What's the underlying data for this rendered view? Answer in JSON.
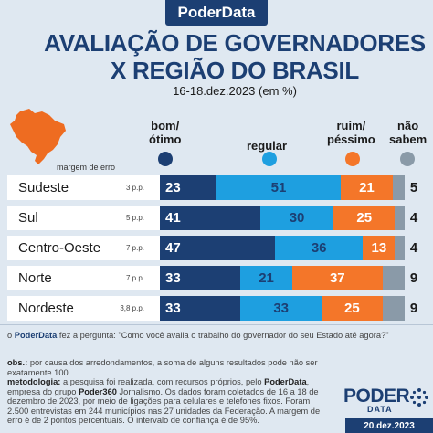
{
  "brand": "PoderData",
  "date_tab": "20.dez.2023",
  "logo": {
    "main": "PODER",
    "sub": "DATA"
  },
  "colors": {
    "bom_otimo": "#1c3f73",
    "regular": "#1e9fe0",
    "ruim_pessimo": "#f47629",
    "nao_sabem": "#8a9aa8",
    "brazil_map": "#ee6c21"
  },
  "legend": {
    "bom_otimo": "bom/\nótimo",
    "regular": "regular",
    "ruim_pessimo": "ruim/\npéssimo",
    "nao_sabem": "não\nsabem",
    "margem": "margem de erro"
  },
  "pergunta_prefix": "o",
  "pergunta_brand": "PoderData",
  "pergunta_text": "fez a pergunta: \"Como você avalia o trabalho do governador do seu Estado até agora?\"",
  "obs_label": "obs.:",
  "obs_text": "por causa dos arredondamentos, a soma de alguns resultados pode não ser exatamente 100.",
  "metodologia_label": "metodologia:",
  "metodologia_text_1": "a pesquisa foi realizada, com recursos próprios, pelo",
  "metodologia_brand_1": "PoderData",
  "metodologia_text_2": ", empresa do grupo",
  "metodologia_brand_2": "Poder360",
  "metodologia_text_3": "Jornalismo. Os dados foram coletados de 16 a 18 de dezembro de 2023, por meio de ligações para celulares e telefones fixos. Foram 2.500 entrevistas em 244 municípios nas 27 unidades da Federação. A margem de erro é de 2 pontos percentuais. O intervalo de confiança é de 95%.",
  "chart_data": {
    "type": "bar",
    "stacked": true,
    "orientation": "horizontal",
    "title": "AVALIAÇÃO DE GOVERNADORES",
    "title_line2": "X REGIÃO DO BRASIL",
    "subtitle": "16-18.dez.2023 (em %)",
    "categories": [
      "Sudeste",
      "Sul",
      "Centro-Oeste",
      "Norte",
      "Nordeste"
    ],
    "margins": [
      "3 p.p.",
      "5 p.p.",
      "7 p.p.",
      "7 p.p.",
      "3,8 p.p."
    ],
    "series": [
      {
        "name": "bom/ ótimo",
        "key": "bom_otimo",
        "values": [
          23,
          41,
          47,
          33,
          33
        ]
      },
      {
        "name": "regular",
        "key": "regular",
        "values": [
          51,
          30,
          36,
          21,
          33
        ]
      },
      {
        "name": "ruim/ péssimo",
        "key": "ruim_pessimo",
        "values": [
          21,
          25,
          13,
          37,
          25
        ]
      },
      {
        "name": "não sabem",
        "key": "nao_sabem",
        "values": [
          5,
          4,
          4,
          9,
          9
        ]
      }
    ],
    "xlim": [
      0,
      100
    ]
  }
}
